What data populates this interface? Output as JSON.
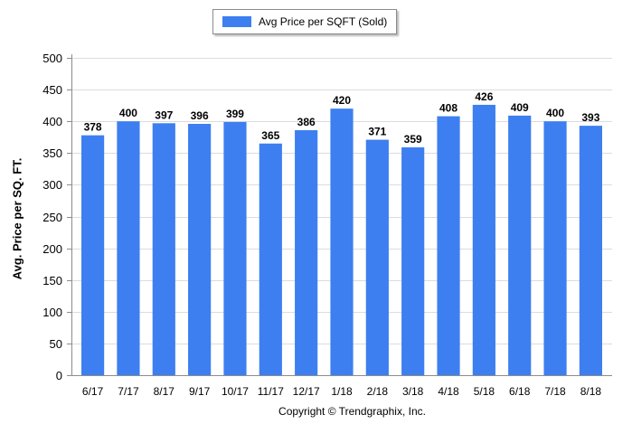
{
  "chart_data": {
    "type": "bar",
    "categories": [
      "6/17",
      "7/17",
      "8/17",
      "9/17",
      "10/17",
      "11/17",
      "12/17",
      "1/18",
      "2/18",
      "3/18",
      "4/18",
      "5/18",
      "6/18",
      "7/18",
      "8/18"
    ],
    "series": [
      {
        "name": "Avg Price per SQFT (Sold)",
        "values": [
          378,
          400,
          397,
          396,
          399,
          365,
          386,
          420,
          371,
          359,
          408,
          426,
          409,
          400,
          393
        ]
      }
    ],
    "xlabel": "",
    "ylabel": "Avg. Price per SQ. FT.",
    "ylim": [
      0,
      500
    ],
    "yticks": [
      0,
      50,
      100,
      150,
      200,
      250,
      300,
      350,
      400,
      450,
      500
    ],
    "grid": true,
    "legend_position": "top-center",
    "data_labels": true,
    "colors": {
      "bar": "#3d7ff0",
      "grid": "#dcdcdc",
      "axis": "#8c8c8c"
    }
  },
  "footer": {
    "copyright": "Copyright © Trendgraphix, Inc."
  }
}
